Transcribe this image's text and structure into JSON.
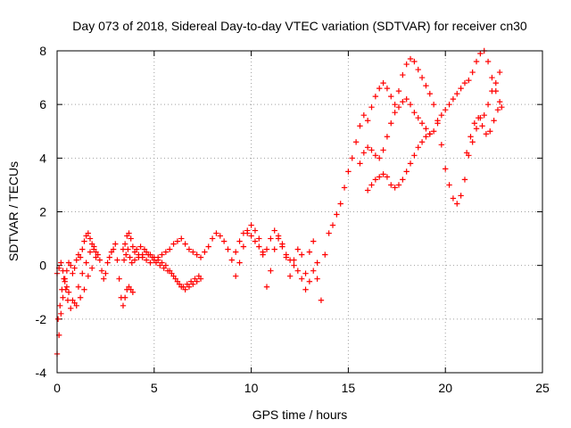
{
  "chart_data": {
    "type": "scatter",
    "title": "Day 073 of 2018, Sidereal Day-to-day VTEC variation (SDTVAR) for receiver cn30",
    "xlabel": "GPS time / hours",
    "ylabel": "SDTVAR / TECUs",
    "xlim": [
      0,
      25
    ],
    "ylim": [
      -4,
      8
    ],
    "x_ticks": [
      0,
      5,
      10,
      15,
      20,
      25
    ],
    "y_ticks": [
      -4,
      -2,
      0,
      2,
      4,
      6,
      8
    ],
    "grid": true,
    "marker": "+",
    "colors": {
      "series": "#ff0000",
      "grid": "#a0a0a0",
      "axis": "#000000"
    },
    "series": [
      {
        "name": "SDTVAR",
        "x": [
          0.0,
          0.1,
          0.2,
          0.3,
          0.4,
          0.5,
          0.6,
          0.7,
          0.8,
          0.9,
          1.0,
          1.1,
          1.2,
          1.3,
          1.4,
          1.5,
          1.6,
          1.7,
          1.8,
          1.9,
          2.0,
          2.1,
          2.2,
          2.3,
          2.4,
          2.5,
          2.6,
          2.7,
          2.8,
          2.9,
          3.0,
          3.1,
          3.2,
          3.3,
          3.4,
          3.5,
          3.6,
          3.7,
          3.8,
          3.9,
          4.0,
          4.2,
          4.4,
          4.6,
          4.8,
          5.0,
          5.2,
          5.4,
          5.6,
          5.8,
          6.0,
          6.2,
          6.4,
          6.6,
          6.8,
          7.0,
          7.2,
          7.4,
          7.6,
          7.8,
          8.0,
          8.2,
          8.4,
          8.6,
          8.8,
          9.0,
          9.2,
          9.4,
          9.6,
          9.8,
          10.0,
          10.2,
          10.4,
          10.6,
          10.8,
          11.0,
          11.2,
          11.4,
          11.6,
          11.8,
          12.0,
          12.2,
          12.4,
          12.6,
          12.8,
          13.0,
          13.2,
          13.4,
          13.6,
          13.8,
          14.0,
          14.2,
          14.4,
          14.6,
          14.8,
          15.0,
          15.2,
          15.4,
          15.6,
          15.8,
          16.0,
          16.2,
          16.4,
          16.6,
          16.8,
          17.0,
          17.2,
          17.4,
          17.6,
          17.8,
          18.0,
          18.2,
          18.4,
          18.6,
          18.8,
          19.0,
          19.2,
          19.4,
          19.6,
          19.8,
          20.0,
          20.2,
          20.4,
          20.6,
          20.8,
          21.0,
          21.2,
          21.4,
          21.6,
          21.8,
          22.0,
          22.2,
          22.4,
          22.6,
          22.8,
          0.0,
          0.1,
          0.2,
          0.3,
          0.4,
          0.5,
          0.6,
          0.8,
          1.0,
          1.2,
          1.4,
          1.6,
          1.8,
          2.0,
          3.4,
          3.5,
          3.6,
          3.7,
          3.8,
          3.9,
          4.0,
          4.2,
          4.4,
          4.6,
          4.8,
          5.0,
          5.2,
          5.4,
          5.6,
          5.8,
          6.0,
          6.2,
          6.4,
          6.6,
          6.8,
          7.0,
          7.2,
          7.4,
          9.2,
          9.4,
          9.6,
          9.8,
          10.0,
          10.2,
          10.4,
          10.6,
          10.8,
          11.0,
          11.2,
          11.4,
          11.6,
          11.8,
          12.0,
          12.2,
          12.4,
          12.6,
          12.8,
          13.0,
          13.2,
          13.4,
          15.6,
          15.8,
          16.0,
          16.2,
          16.4,
          16.6,
          16.8,
          17.0,
          17.2,
          17.4,
          17.6,
          17.8,
          18.0,
          18.2,
          18.4,
          18.6,
          18.8,
          19.0,
          19.2,
          16.0,
          16.2,
          16.4,
          16.6,
          16.8,
          17.0,
          17.2,
          17.4,
          17.6,
          17.8,
          18.0,
          18.2,
          18.4,
          18.6,
          18.8,
          19.0,
          19.2,
          19.4,
          19.6,
          19.8,
          20.0,
          20.2,
          20.4,
          20.6,
          20.8,
          21.0,
          21.2,
          21.4,
          21.6,
          21.8,
          22.0,
          22.2,
          22.4,
          22.6,
          22.8,
          0.05,
          0.15,
          0.25,
          0.35,
          0.45,
          0.55,
          0.7,
          0.9,
          1.1,
          1.3,
          1.5,
          1.7,
          1.9,
          3.45,
          3.55,
          3.65,
          3.75,
          3.85,
          4.1,
          4.3,
          4.5,
          4.7,
          4.9,
          5.1,
          5.3,
          5.5,
          5.7,
          5.9,
          6.1,
          6.3,
          6.5,
          6.7,
          6.9,
          7.1,
          7.3,
          21.1,
          21.3,
          21.5,
          21.7,
          21.9,
          22.1,
          22.3,
          22.5,
          22.7,
          22.9
        ],
        "y": [
          -3.3,
          -2.6,
          -1.8,
          -1.2,
          -0.6,
          -0.2,
          0.1,
          0.0,
          -0.3,
          -0.1,
          0.2,
          0.4,
          0.3,
          0.6,
          0.9,
          1.1,
          1.2,
          1.0,
          0.8,
          0.6,
          0.5,
          0.4,
          0.2,
          -0.2,
          -0.5,
          -0.3,
          0.1,
          0.3,
          0.5,
          0.6,
          0.8,
          0.2,
          -0.5,
          -1.2,
          -1.5,
          -1.2,
          -0.9,
          -0.8,
          -0.9,
          -1.0,
          0.2,
          0.3,
          0.4,
          0.5,
          0.4,
          0.3,
          0.2,
          0.4,
          0.5,
          0.6,
          0.8,
          0.9,
          1.0,
          0.8,
          0.6,
          0.5,
          0.4,
          0.3,
          0.5,
          0.7,
          1.0,
          1.2,
          1.1,
          0.9,
          0.6,
          0.2,
          -0.4,
          0.1,
          0.7,
          1.2,
          1.5,
          1.3,
          1.0,
          0.4,
          -0.8,
          -0.2,
          0.6,
          1.0,
          0.8,
          0.3,
          -0.4,
          0.2,
          0.6,
          0.4,
          -0.3,
          0.5,
          0.9,
          -0.5,
          -1.3,
          0.4,
          1.2,
          1.5,
          1.9,
          2.3,
          2.9,
          3.5,
          4.0,
          4.6,
          5.2,
          5.6,
          5.4,
          5.9,
          6.3,
          6.6,
          6.8,
          6.6,
          6.3,
          6.0,
          6.5,
          7.1,
          7.5,
          7.7,
          7.6,
          7.3,
          7.0,
          6.7,
          6.4,
          6.0,
          5.4,
          4.5,
          3.6,
          3.0,
          2.5,
          2.3,
          2.6,
          3.2,
          4.1,
          4.6,
          5.1,
          5.5,
          5.6,
          6.0,
          6.5,
          6.8,
          7.2,
          -0.3,
          -0.1,
          0.1,
          -0.2,
          -0.5,
          -0.8,
          -1.0,
          -1.3,
          -1.5,
          -1.2,
          -0.9,
          -0.4,
          -0.1,
          0.3,
          0.6,
          0.8,
          1.1,
          1.2,
          1.0,
          0.7,
          0.5,
          0.4,
          0.3,
          0.2,
          0.1,
          0.2,
          0.3,
          0.1,
          0.0,
          -0.2,
          -0.4,
          -0.6,
          -0.8,
          -0.9,
          -0.8,
          -0.7,
          -0.6,
          -0.5,
          0.5,
          0.9,
          1.2,
          1.3,
          1.1,
          0.9,
          0.7,
          0.5,
          0.6,
          1.0,
          1.3,
          1.1,
          0.7,
          0.4,
          0.2,
          0.0,
          -0.2,
          -0.5,
          -0.9,
          -0.6,
          -0.2,
          0.1,
          3.8,
          4.2,
          4.4,
          4.3,
          4.1,
          4.0,
          4.3,
          4.8,
          5.3,
          5.7,
          5.9,
          6.1,
          6.2,
          6.0,
          5.7,
          5.5,
          5.3,
          5.1,
          4.9,
          2.8,
          3.0,
          3.2,
          3.3,
          3.4,
          3.3,
          3.0,
          2.9,
          3.0,
          3.2,
          3.5,
          3.8,
          4.1,
          4.4,
          4.6,
          4.8,
          4.9,
          5.0,
          5.3,
          5.6,
          5.8,
          6.0,
          6.2,
          6.4,
          6.6,
          6.8,
          6.9,
          7.2,
          7.6,
          7.9,
          8.0,
          7.6,
          7.0,
          6.5,
          6.1,
          -2.0,
          -1.5,
          -0.9,
          -0.5,
          -0.9,
          -1.3,
          -1.6,
          -1.4,
          -0.8,
          -0.3,
          0.1,
          0.5,
          0.7,
          0.2,
          0.4,
          0.6,
          0.3,
          0.1,
          0.6,
          0.7,
          0.6,
          0.4,
          0.3,
          0.1,
          0.0,
          -0.1,
          -0.2,
          -0.3,
          -0.5,
          -0.7,
          -0.8,
          -0.7,
          -0.6,
          -0.5,
          -0.4,
          4.2,
          4.8,
          5.3,
          5.5,
          5.2,
          4.9,
          5.0,
          5.4,
          5.8,
          5.9
        ]
      }
    ]
  }
}
